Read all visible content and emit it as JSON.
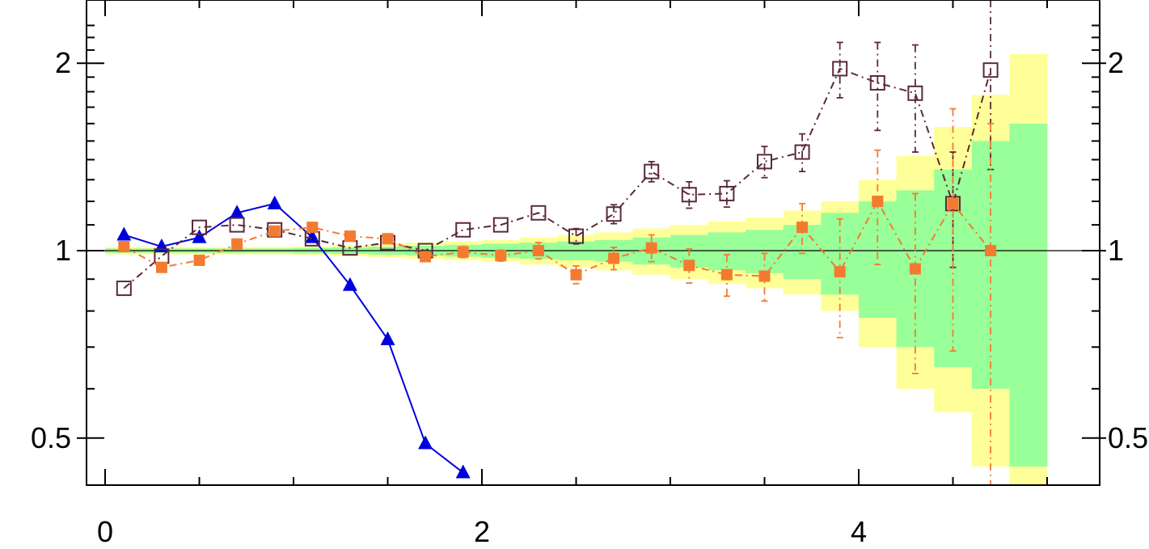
{
  "chart_data": {
    "type": "scatter",
    "title": "",
    "xlabel": "",
    "ylabel": "",
    "xlim": [
      -0.05,
      5.3
    ],
    "ylim": [
      0.43,
      2.38
    ],
    "yscale": "log",
    "reference_line": 1,
    "x_ticks": [
      0,
      2,
      4
    ],
    "x_tick_labels": [
      "0",
      "2",
      "4"
    ],
    "y_ticks": [
      0.5,
      1,
      2
    ],
    "y_tick_labels_left": [
      "0.5",
      "1",
      "2"
    ],
    "y_tick_labels_right": [
      "0.5",
      "1",
      "2"
    ],
    "bands": [
      {
        "name": "",
        "color": "#ffff99",
        "edges": [
          0.0,
          0.2,
          0.4,
          0.6,
          0.8,
          1.0,
          1.2,
          1.4,
          1.6,
          1.8,
          2.0,
          2.2,
          2.4,
          2.6,
          2.8,
          3.0,
          3.2,
          3.4,
          3.6,
          3.8,
          4.0,
          4.2,
          4.4,
          4.6,
          4.8
        ],
        "upper": [
          1.014,
          1.014,
          1.014,
          1.014,
          1.014,
          1.016,
          1.02,
          1.025,
          1.03,
          1.035,
          1.04,
          1.05,
          1.06,
          1.07,
          1.085,
          1.1,
          1.115,
          1.13,
          1.16,
          1.2,
          1.3,
          1.42,
          1.58,
          1.78,
          2.07
        ],
        "lower": [
          0.986,
          0.986,
          0.986,
          0.986,
          0.986,
          0.984,
          0.98,
          0.975,
          0.97,
          0.965,
          0.96,
          0.95,
          0.94,
          0.93,
          0.915,
          0.9,
          0.885,
          0.87,
          0.85,
          0.8,
          0.7,
          0.6,
          0.55,
          0.45,
          0.42
        ]
      },
      {
        "name": "",
        "color": "#99ff99",
        "edges": [
          0.0,
          0.2,
          0.4,
          0.6,
          0.8,
          1.0,
          1.2,
          1.4,
          1.6,
          1.8,
          2.0,
          2.2,
          2.4,
          2.6,
          2.8,
          3.0,
          3.2,
          3.4,
          3.6,
          3.8,
          4.0,
          4.2,
          4.4,
          4.6,
          4.8
        ],
        "upper": [
          1.008,
          1.008,
          1.008,
          1.008,
          1.008,
          1.01,
          1.012,
          1.015,
          1.018,
          1.022,
          1.026,
          1.03,
          1.035,
          1.04,
          1.05,
          1.06,
          1.07,
          1.08,
          1.1,
          1.15,
          1.2,
          1.25,
          1.35,
          1.5,
          1.6
        ],
        "lower": [
          0.992,
          0.992,
          0.992,
          0.992,
          0.992,
          0.99,
          0.988,
          0.985,
          0.982,
          0.978,
          0.974,
          0.97,
          0.965,
          0.96,
          0.95,
          0.94,
          0.93,
          0.92,
          0.9,
          0.85,
          0.78,
          0.7,
          0.65,
          0.6,
          0.45
        ]
      }
    ],
    "series": [
      {
        "name": "",
        "color": "#0000dd",
        "marker": "triangle",
        "line": "solid",
        "x": [
          0.1,
          0.3,
          0.5,
          0.7,
          0.9,
          1.1,
          1.3,
          1.5,
          1.7,
          1.9
        ],
        "y": [
          1.06,
          1.015,
          1.05,
          1.15,
          1.19,
          1.05,
          0.88,
          0.72,
          0.49,
          0.44
        ]
      },
      {
        "name": "",
        "color": "#5a2a3a",
        "marker": "open-square",
        "line": "dash-dot",
        "x": [
          0.1,
          0.3,
          0.5,
          0.7,
          0.9,
          1.1,
          1.3,
          1.5,
          1.7,
          1.9,
          2.1,
          2.3,
          2.5,
          2.7,
          2.9,
          3.1,
          3.3,
          3.5,
          3.7,
          3.9,
          4.1,
          4.3,
          4.5,
          4.7
        ],
        "y": [
          0.87,
          0.98,
          1.09,
          1.1,
          1.08,
          1.045,
          1.01,
          1.03,
          1.0,
          1.08,
          1.1,
          1.15,
          1.055,
          1.145,
          1.34,
          1.23,
          1.235,
          1.39,
          1.44,
          1.96,
          1.86,
          1.79,
          1.19,
          1.95
        ],
        "err": [
          0,
          0,
          0,
          0,
          0,
          0,
          0,
          0,
          0,
          0,
          0,
          0,
          0.03,
          0.04,
          0.05,
          0.06,
          0.06,
          0.08,
          0.1,
          0.2,
          0.3,
          0.35,
          0.25,
          0.6
        ]
      },
      {
        "name": "",
        "color": "#f47a30",
        "marker": "square",
        "line": "dash-dot",
        "x": [
          0.1,
          0.3,
          0.5,
          0.7,
          0.9,
          1.1,
          1.3,
          1.5,
          1.7,
          1.9,
          2.1,
          2.3,
          2.5,
          2.7,
          2.9,
          3.1,
          3.3,
          3.5,
          3.7,
          3.9,
          4.1,
          4.3,
          4.5,
          4.7
        ],
        "y": [
          1.015,
          0.94,
          0.965,
          1.025,
          1.075,
          1.09,
          1.055,
          1.045,
          0.978,
          0.995,
          0.982,
          1.0,
          0.915,
          0.972,
          1.01,
          0.947,
          0.915,
          0.91,
          1.09,
          0.925,
          1.2,
          0.935,
          1.19,
          1.0
        ],
        "err": [
          0,
          0,
          0,
          0,
          0,
          0,
          0,
          0,
          0,
          0.02,
          0.02,
          0.03,
          0.03,
          0.04,
          0.05,
          0.06,
          0.07,
          0.08,
          0.1,
          0.2,
          0.25,
          0.3,
          0.5,
          0.6
        ]
      }
    ]
  }
}
